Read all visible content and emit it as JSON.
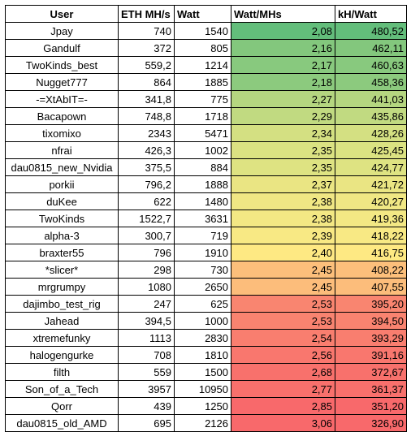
{
  "table": {
    "headers": {
      "user": "User",
      "eth": "ETH MH/s",
      "watt": "Watt",
      "watt_per_mhs": "Watt/MHs",
      "kh_per_watt": "kH/Watt"
    },
    "rows": [
      {
        "user": "Jpay",
        "eth": "740",
        "watt": "1540",
        "wpm": "2,08",
        "khw": "480,52",
        "wpm_color": "#63be7b",
        "khw_color": "#63be7b"
      },
      {
        "user": "Gandulf",
        "eth": "372",
        "watt": "805",
        "wpm": "2,16",
        "khw": "462,11",
        "wpm_color": "#83c77d",
        "khw_color": "#83c77d"
      },
      {
        "user": "TwoKinds_best",
        "eth": "559,2",
        "watt": "1214",
        "wpm": "2,17",
        "khw": "460,63",
        "wpm_color": "#88c97e",
        "khw_color": "#88c97e"
      },
      {
        "user": "Nugget777",
        "eth": "864",
        "watt": "1885",
        "wpm": "2,18",
        "khw": "458,36",
        "wpm_color": "#8cca7e",
        "khw_color": "#8cca7e"
      },
      {
        "user": "-=XtAbIT=-",
        "eth": "341,8",
        "watt": "775",
        "wpm": "2,27",
        "khw": "441,03",
        "wpm_color": "#b5d680",
        "khw_color": "#b5d680"
      },
      {
        "user": "Bacapown",
        "eth": "748,8",
        "watt": "1718",
        "wpm": "2,29",
        "khw": "435,86",
        "wpm_color": "#c1da81",
        "khw_color": "#c1da81"
      },
      {
        "user": "tixomixo",
        "eth": "2343",
        "watt": "5471",
        "wpm": "2,34",
        "khw": "428,26",
        "wpm_color": "#d4e082",
        "khw_color": "#d4e082"
      },
      {
        "user": "nfrai",
        "eth": "426,3",
        "watt": "1002",
        "wpm": "2,35",
        "khw": "425,45",
        "wpm_color": "#dbe282",
        "khw_color": "#dbe282"
      },
      {
        "user": "dau0815_new_Nvidia",
        "eth": "375,5",
        "watt": "884",
        "wpm": "2,35",
        "khw": "424,77",
        "wpm_color": "#dee382",
        "khw_color": "#dee382"
      },
      {
        "user": "porkii",
        "eth": "796,2",
        "watt": "1888",
        "wpm": "2,37",
        "khw": "421,72",
        "wpm_color": "#eae583",
        "khw_color": "#eae583"
      },
      {
        "user": "duKee",
        "eth": "622",
        "watt": "1480",
        "wpm": "2,38",
        "khw": "420,27",
        "wpm_color": "#f0e784",
        "khw_color": "#f0e784"
      },
      {
        "user": "TwoKinds",
        "eth": "1522,7",
        "watt": "3631",
        "wpm": "2,38",
        "khw": "419,36",
        "wpm_color": "#f3e884",
        "khw_color": "#f3e884"
      },
      {
        "user": "alpha-3",
        "eth": "300,7",
        "watt": "719",
        "wpm": "2,39",
        "khw": "418,22",
        "wpm_color": "#f8e984",
        "khw_color": "#f8e984"
      },
      {
        "user": "braxter55",
        "eth": "796",
        "watt": "1910",
        "wpm": "2,40",
        "khw": "416,75",
        "wpm_color": "#fee983",
        "khw_color": "#fee983"
      },
      {
        "user": "*slicer*",
        "eth": "298",
        "watt": "730",
        "wpm": "2,45",
        "khw": "408,22",
        "wpm_color": "#fcbf7b",
        "khw_color": "#fcbf7b"
      },
      {
        "user": "mrgrumpy",
        "eth": "1080",
        "watt": "2650",
        "wpm": "2,45",
        "khw": "407,55",
        "wpm_color": "#fcbd7b",
        "khw_color": "#fcbd7b"
      },
      {
        "user": "dajimbo_test_rig",
        "eth": "247",
        "watt": "625",
        "wpm": "2,53",
        "khw": "395,20",
        "wpm_color": "#f98570",
        "khw_color": "#f98570"
      },
      {
        "user": "Jahead",
        "eth": "394,5",
        "watt": "1000",
        "wpm": "2,53",
        "khw": "394,50",
        "wpm_color": "#f98370",
        "khw_color": "#f98370"
      },
      {
        "user": "xtremefunky",
        "eth": "1113",
        "watt": "2830",
        "wpm": "2,54",
        "khw": "393,29",
        "wpm_color": "#f97e6f",
        "khw_color": "#f97e6f"
      },
      {
        "user": "halogengurke",
        "eth": "708",
        "watt": "1810",
        "wpm": "2,56",
        "khw": "391,16",
        "wpm_color": "#f9776e",
        "khw_color": "#f9776e"
      },
      {
        "user": "filth",
        "eth": "559",
        "watt": "1500",
        "wpm": "2,68",
        "khw": "372,67",
        "wpm_color": "#f8716c",
        "khw_color": "#f8716c"
      },
      {
        "user": "Son_of_a_Tech",
        "eth": "3957",
        "watt": "10950",
        "wpm": "2,77",
        "khw": "361,37",
        "wpm_color": "#f8706c",
        "khw_color": "#f8706c"
      },
      {
        "user": "Qorr",
        "eth": "439",
        "watt": "1250",
        "wpm": "2,85",
        "khw": "351,20",
        "wpm_color": "#f8696b",
        "khw_color": "#f8696b"
      },
      {
        "user": "dau0815_old_AMD",
        "eth": "695",
        "watt": "2126",
        "wpm": "3,06",
        "khw": "326,90",
        "wpm_color": "#f8696b",
        "khw_color": "#f8696b"
      }
    ]
  }
}
